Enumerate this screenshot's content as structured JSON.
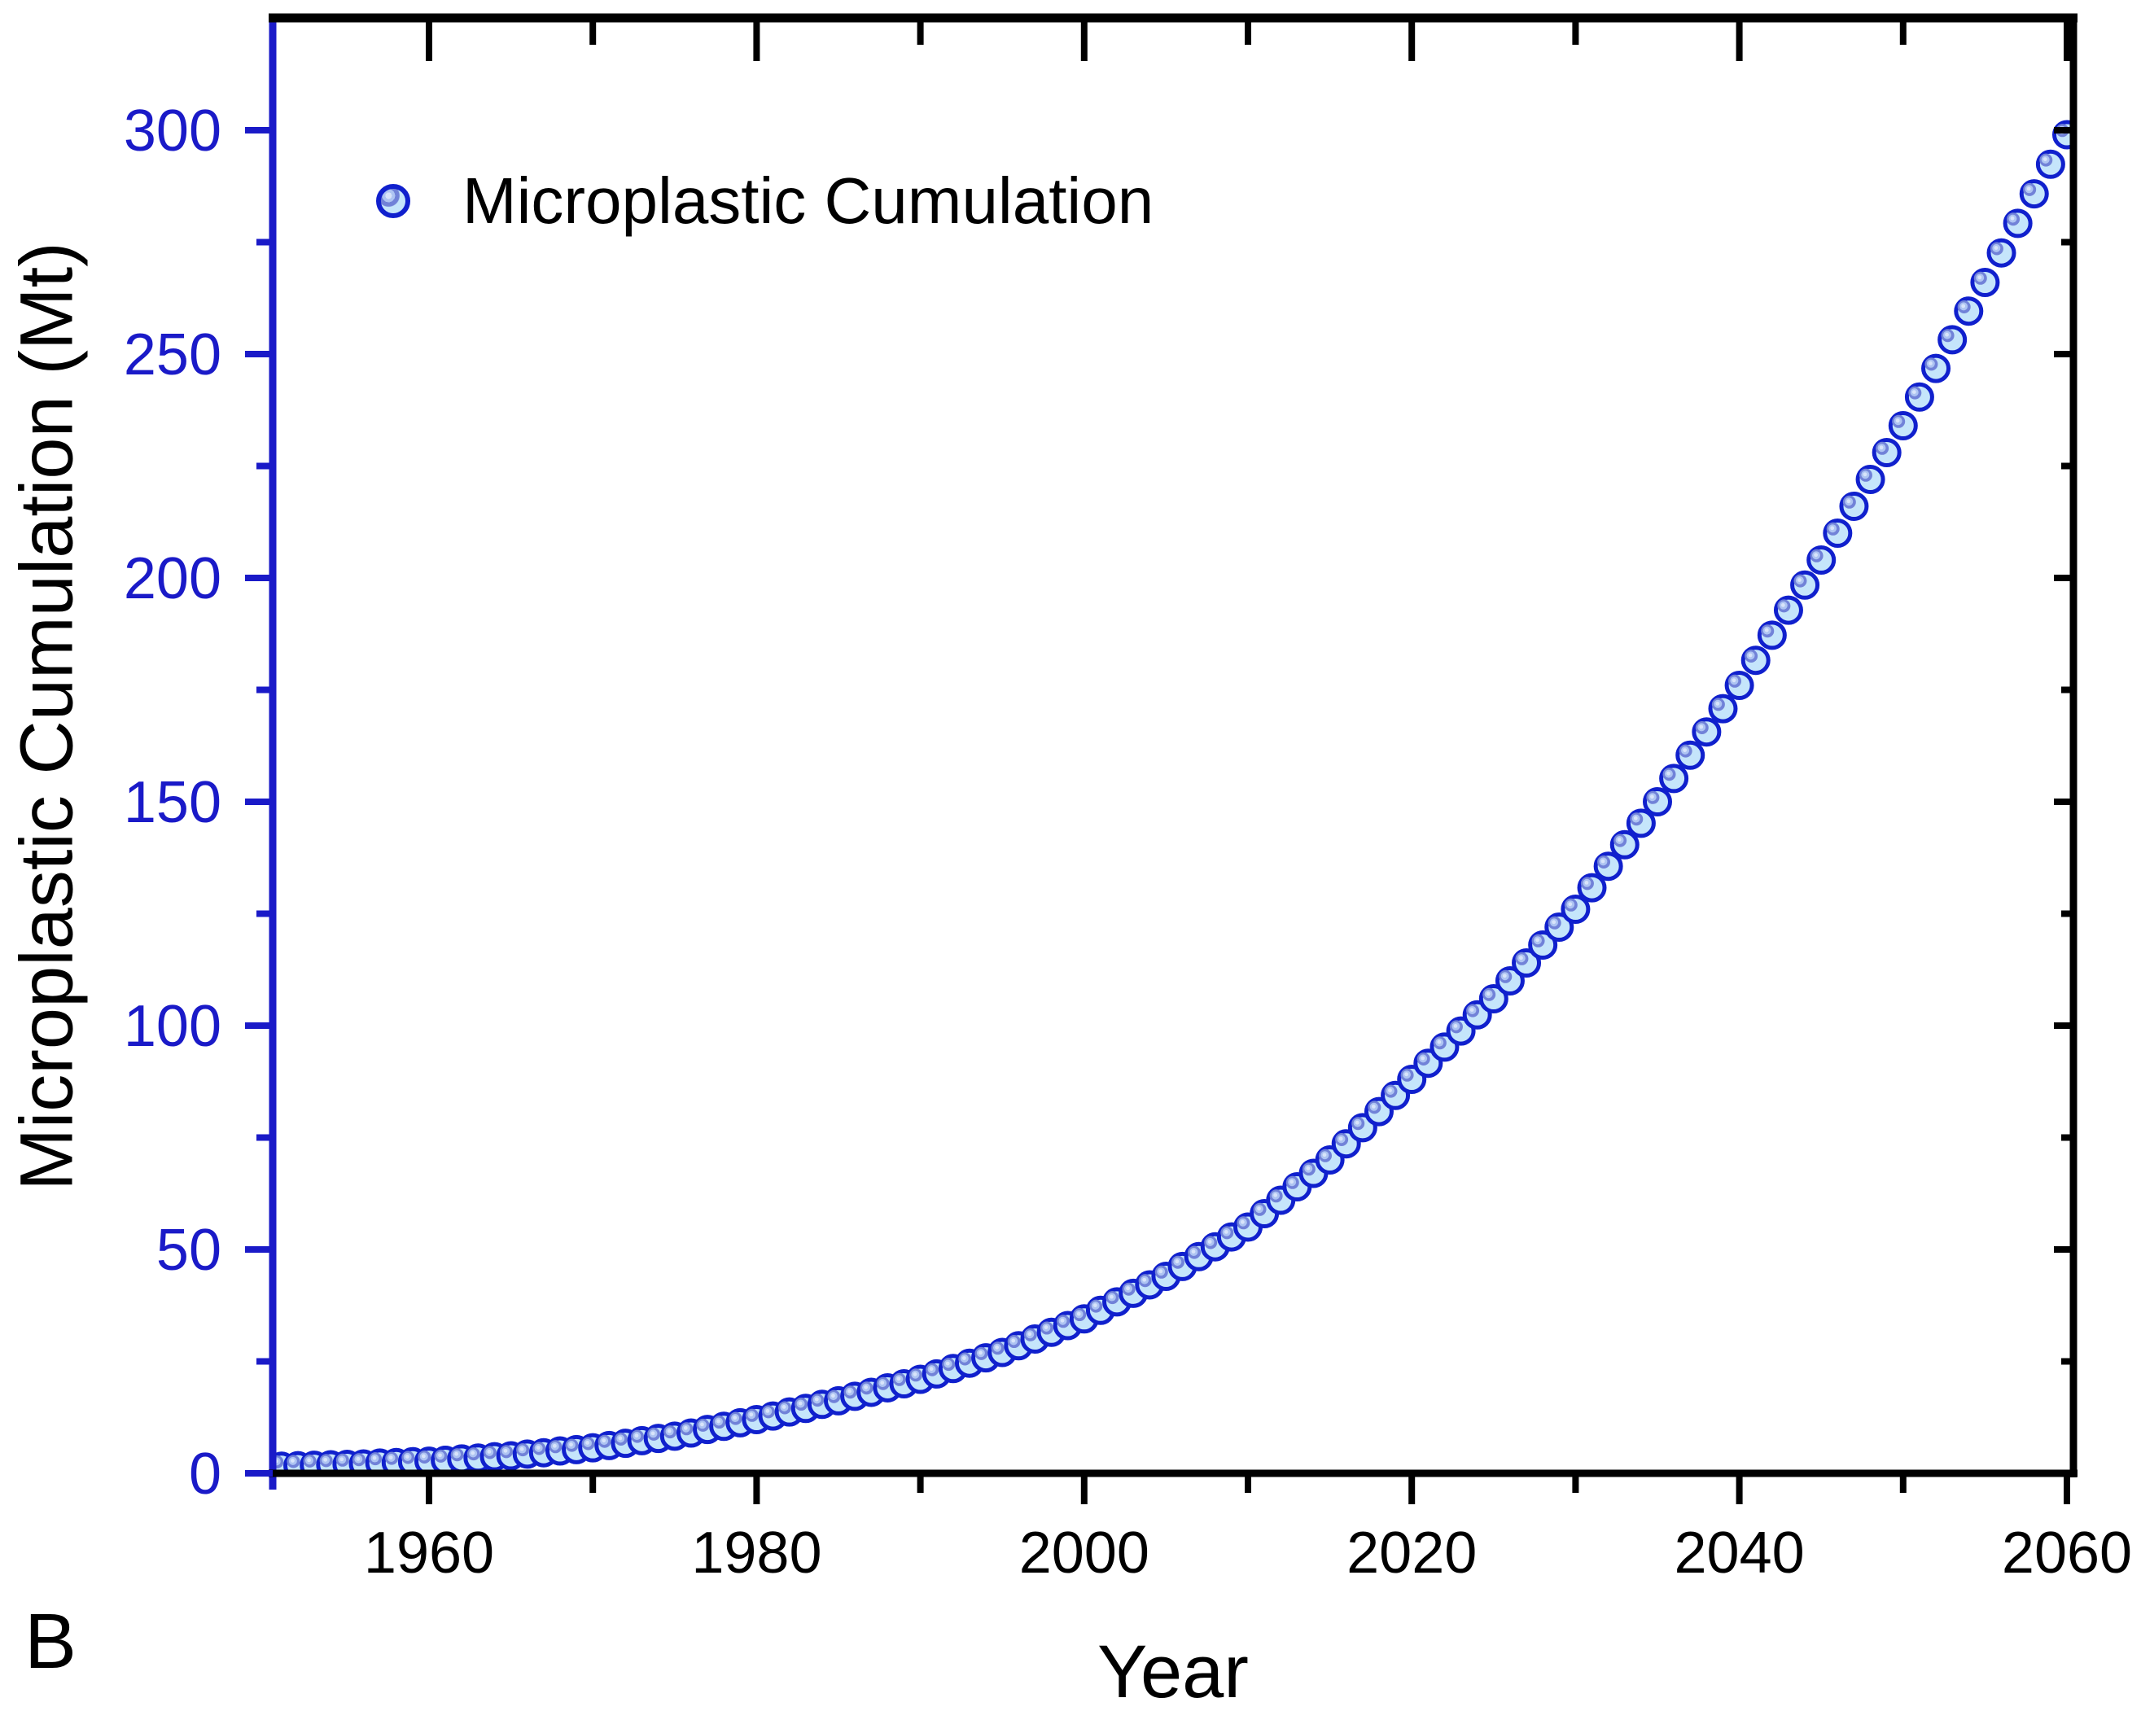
{
  "figure": {
    "panel_label": "B"
  },
  "legend": {
    "label": "Microplastic Cumulation"
  },
  "axes": {
    "x_title": "Year",
    "y_title": "Microplastic Cumulation (Mt)"
  },
  "chart_data": {
    "type": "scatter",
    "title": "",
    "xlabel": "Year",
    "ylabel": "Microplastic Cumulation (Mt)",
    "xlim": [
      1950.45,
      2060.45
    ],
    "ylim": [
      0,
      325
    ],
    "x_major_ticks": [
      1960,
      1980,
      2000,
      2020,
      2040,
      2060
    ],
    "x_minor_ticks": [
      1970,
      1990,
      2010,
      2030,
      2050
    ],
    "y_major_ticks": [
      0,
      50,
      100,
      150,
      200,
      250,
      300
    ],
    "y_minor_ticks": [
      25,
      75,
      125,
      175,
      225,
      275,
      325
    ],
    "grid": false,
    "legend_position": "inside-top-left",
    "colors": {
      "axis_left": "#1a1ac8",
      "axis_other": "#000000",
      "y_tick_label": "#1a1ac8",
      "x_tick_label": "#000000",
      "marker_edge": "#1020cd",
      "marker_fill": "#c5e5fb",
      "marker_highlight_outer": "#7182d8",
      "marker_highlight_mid": "#aec4f2",
      "marker_highlight_center": "#d8e4fa"
    },
    "series": [
      {
        "name": "Microplastic Cumulation",
        "x_start": 1950,
        "x_step": 1,
        "y": [
          1.5,
          1.6,
          1.7,
          1.8,
          1.9,
          2.0,
          2.1,
          2.3,
          2.4,
          2.6,
          2.7,
          2.9,
          3.2,
          3.4,
          3.7,
          3.9,
          4.3,
          4.6,
          5.0,
          5.3,
          5.7,
          6.2,
          6.7,
          7.3,
          7.8,
          8.3,
          9.0,
          9.8,
          10.5,
          11.3,
          12.0,
          12.8,
          13.7,
          14.5,
          15.4,
          16.2,
          17.2,
          18.1,
          19.1,
          20.0,
          21.0,
          22.2,
          23.4,
          24.6,
          25.8,
          27.0,
          28.5,
          30.0,
          31.5,
          33.0,
          34.5,
          36.4,
          38.3,
          40.2,
          42.1,
          44.0,
          46.2,
          48.4,
          50.6,
          52.8,
          55.0,
          58.0,
          61.0,
          64.0,
          67.0,
          70.0,
          73.6,
          77.2,
          80.8,
          84.4,
          88.0,
          91.6,
          95.2,
          98.8,
          102.4,
          106.0,
          110.0,
          114.0,
          118.0,
          122.0,
          126.0,
          130.8,
          135.6,
          140.4,
          145.2,
          150.0,
          155.2,
          160.4,
          165.6,
          170.8,
          176.0,
          181.6,
          187.2,
          192.8,
          198.4,
          204.0,
          210.0,
          216.0,
          222.0,
          228.0,
          234.0,
          240.4,
          246.8,
          253.2,
          259.6,
          266.0,
          272.6,
          279.2,
          285.8,
          292.4,
          299.0
        ]
      }
    ]
  }
}
